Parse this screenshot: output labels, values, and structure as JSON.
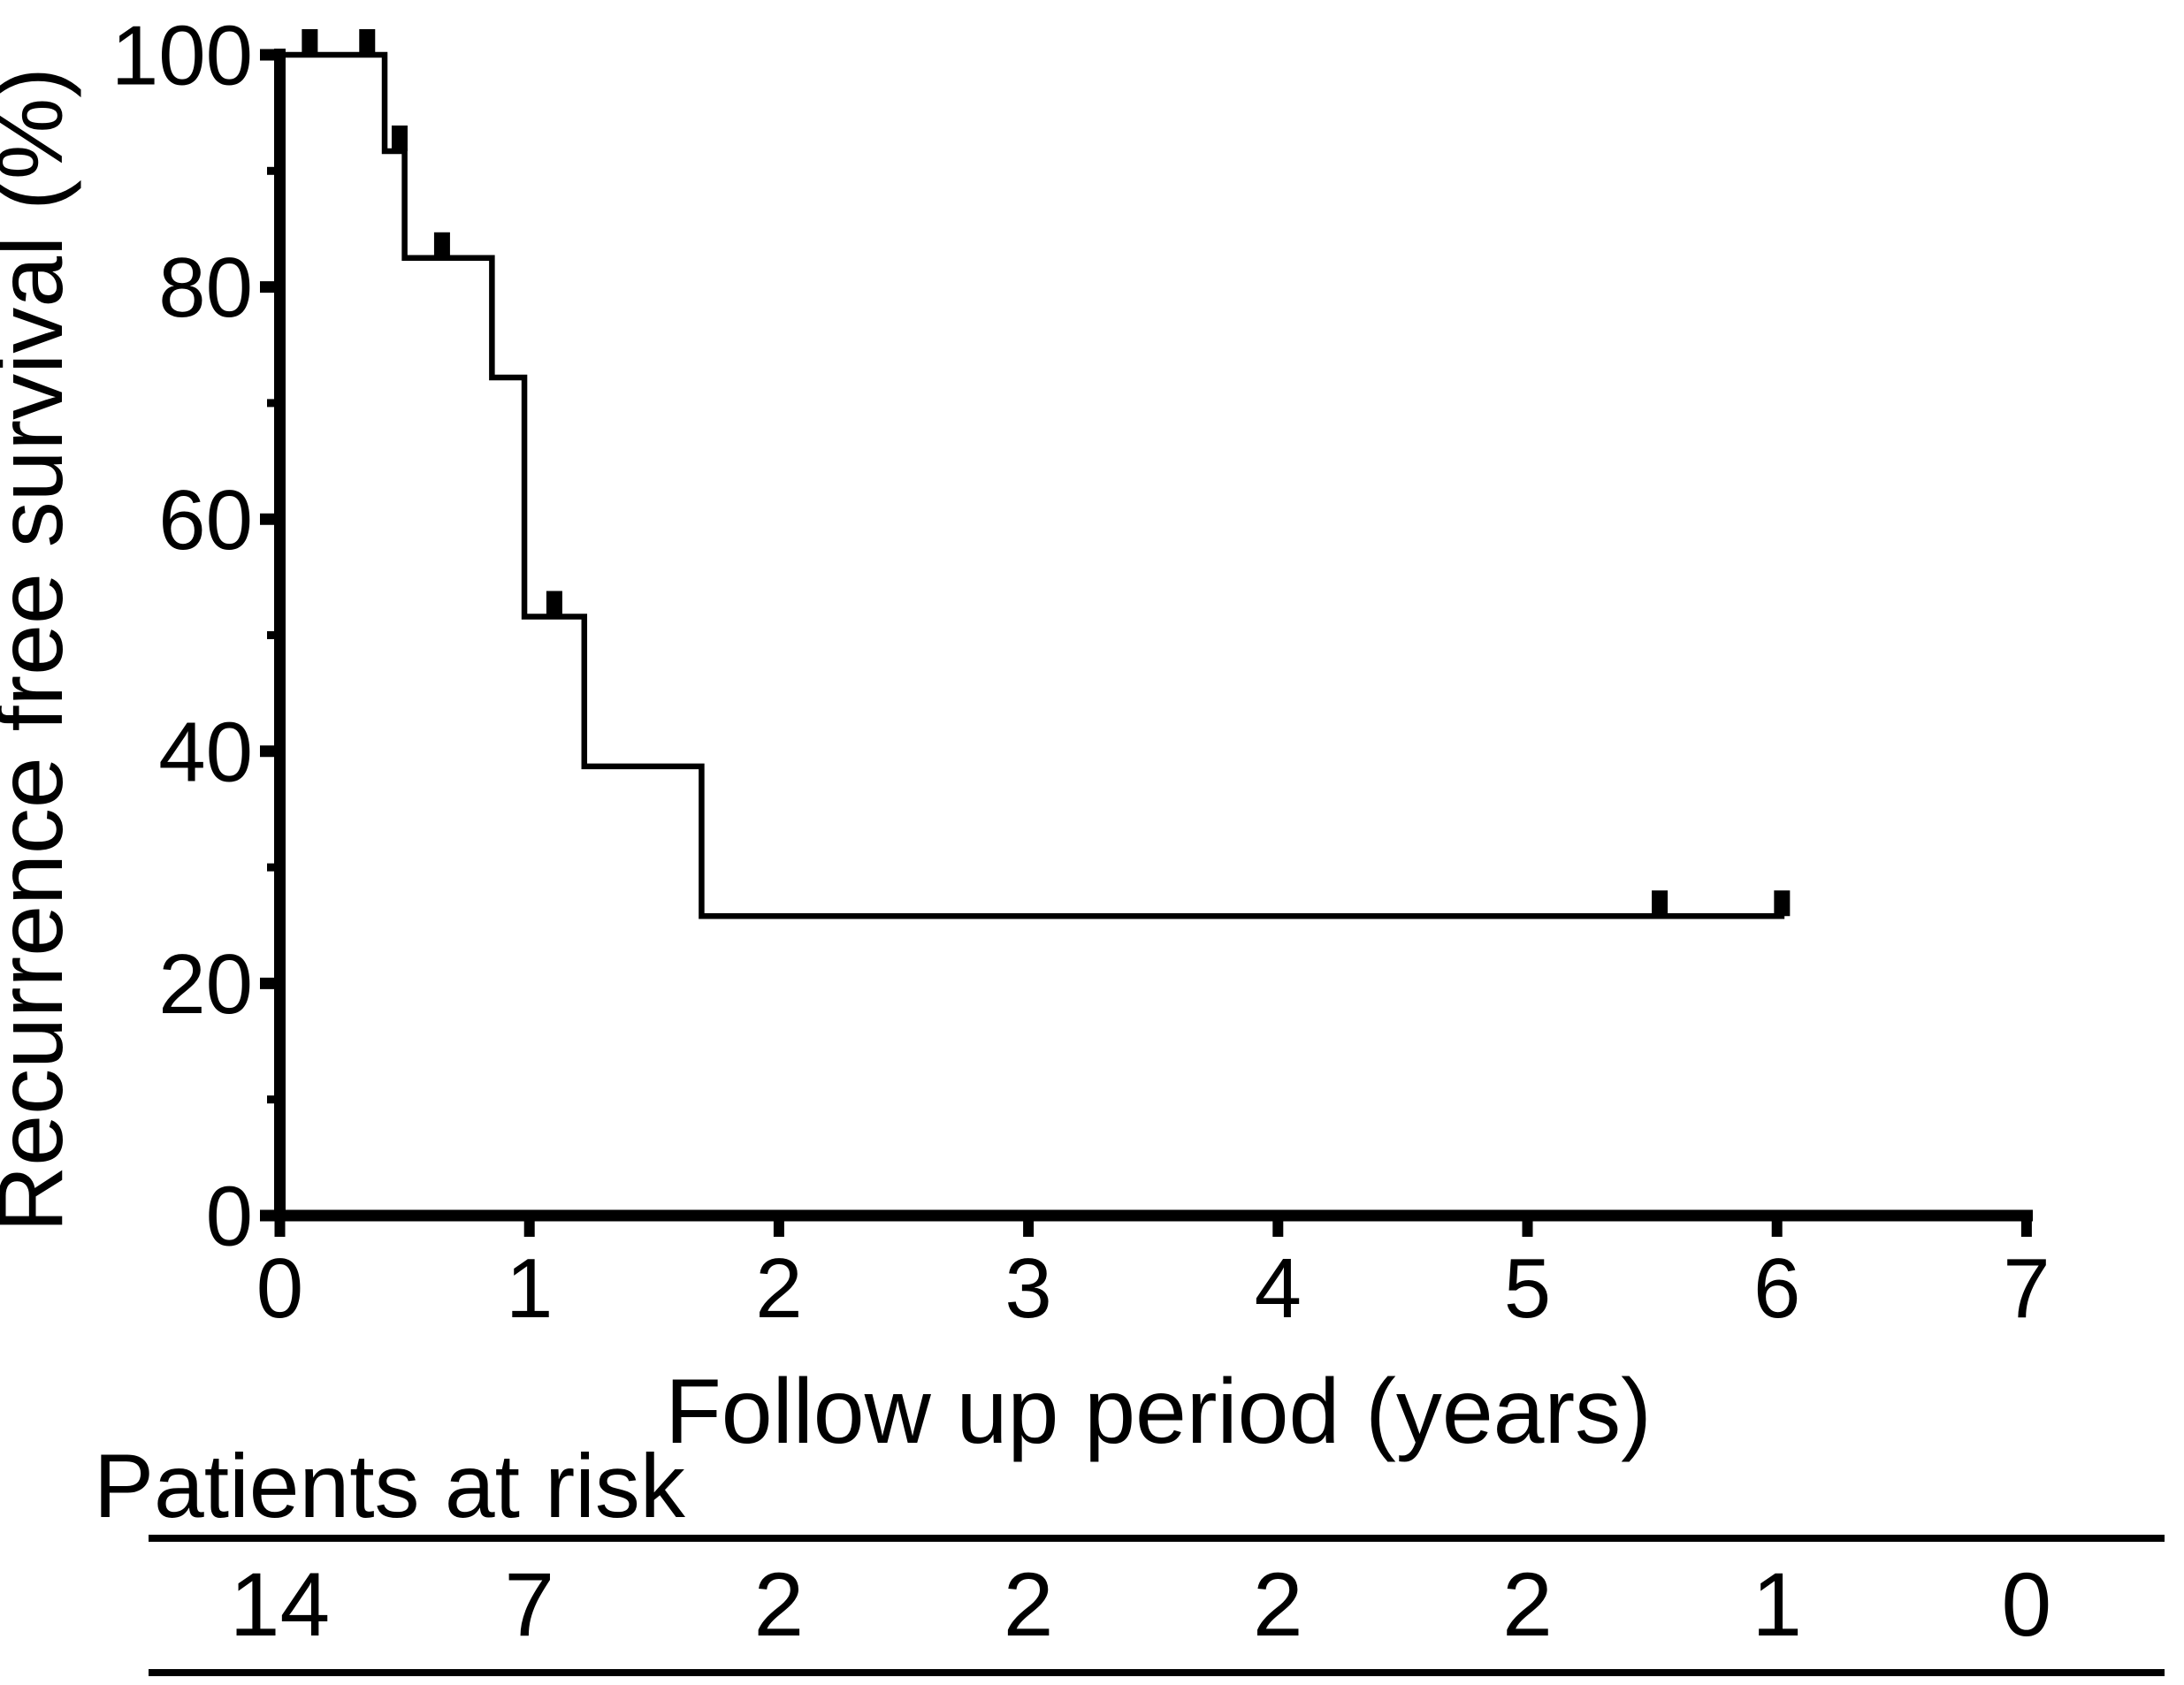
{
  "figure": {
    "background": "#ffffff",
    "ink_color": "#000000"
  },
  "chart_data": {
    "type": "line",
    "subtype": "kaplan_meier_step",
    "title": "",
    "xlabel": "Follow up period (years)",
    "ylabel": "Recurrence free survival (%)",
    "xlim": [
      0,
      7
    ],
    "ylim": [
      0,
      100
    ],
    "x_ticks": [
      0,
      1,
      2,
      3,
      4,
      5,
      6,
      7
    ],
    "y_ticks": [
      0,
      20,
      40,
      60,
      80,
      100
    ],
    "y_minor_ticks": [
      10,
      30,
      50,
      70,
      90
    ],
    "grid": "off",
    "legend": "none",
    "series": [
      {
        "name": "Recurrence free survival",
        "start": [
          0,
          100
        ],
        "drops": [
          [
            0.42,
            91.7
          ],
          [
            0.5,
            82.5
          ],
          [
            0.85,
            72.2
          ],
          [
            0.98,
            51.6
          ],
          [
            1.22,
            38.7
          ],
          [
            1.69,
            25.8
          ]
        ],
        "end_time": 6.03,
        "censor_marks": [
          [
            0.12,
            100
          ],
          [
            0.35,
            100
          ],
          [
            0.48,
            91.7
          ],
          [
            0.65,
            82.5
          ],
          [
            1.1,
            51.6
          ],
          [
            5.53,
            25.8
          ],
          [
            6.02,
            25.8
          ]
        ]
      }
    ],
    "risk_table": {
      "label": "Patients at risk",
      "times": [
        0,
        1,
        2,
        3,
        4,
        5,
        6,
        7
      ],
      "counts": [
        14,
        7,
        2,
        2,
        2,
        2,
        1,
        0
      ]
    }
  }
}
